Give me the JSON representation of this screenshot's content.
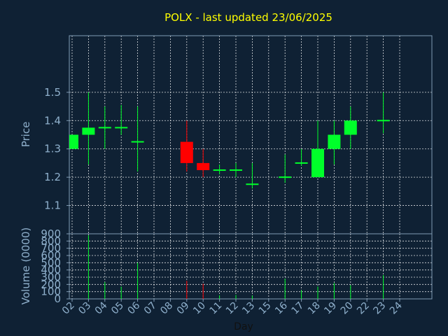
{
  "chart_data": {
    "type": "candlestick",
    "title": "POLX - last updated 23/06/2025",
    "xlabel": "Day",
    "colors": {
      "background": "#0f2134",
      "up": "#00ff2a",
      "down": "#ff0000",
      "title": "#ffff00",
      "text": "#8fb0cc",
      "grid": "#ffffff"
    },
    "x_ticks": [
      "02",
      "03",
      "04",
      "05",
      "06",
      "07",
      "08",
      "09",
      "10",
      "11",
      "12",
      "13",
      "15",
      "16",
      "17",
      "18",
      "19",
      "20",
      "22",
      "23",
      "24"
    ],
    "price_panel": {
      "ylabel": "Price",
      "ylim": [
        1.0,
        1.7
      ],
      "y_ticks": [
        1.1,
        1.2,
        1.3,
        1.4,
        1.5
      ],
      "y_tick_labels": [
        "1.1",
        "1.2",
        "1.3",
        "1.4",
        "1.5"
      ],
      "grid": true
    },
    "volume_panel": {
      "ylabel": "Volume (0000)",
      "ylim": [
        0,
        900
      ],
      "y_ticks": [
        0,
        100,
        200,
        300,
        400,
        500,
        600,
        700,
        800,
        900
      ],
      "y_tick_labels": [
        "0",
        "100",
        "200",
        "300",
        "400",
        "500",
        "600",
        "700",
        "800",
        "900"
      ],
      "grid": true
    },
    "candles": [
      {
        "day": "02",
        "open": 1.3,
        "high": 1.35,
        "low": 1.3,
        "close": 1.35,
        "volume": 0
      },
      {
        "day": "03",
        "open": 1.35,
        "high": 1.5,
        "low": 1.245,
        "close": 1.375,
        "volume": 880
      },
      {
        "day": "04",
        "open": 1.375,
        "high": 1.45,
        "low": 1.3,
        "close": 1.375,
        "volume": 230
      },
      {
        "day": "05",
        "open": 1.375,
        "high": 1.455,
        "low": 1.35,
        "close": 1.375,
        "volume": 170
      },
      {
        "day": "06",
        "open": 1.325,
        "high": 1.45,
        "low": 1.22,
        "close": 1.325,
        "volume": 500
      },
      {
        "day": "09",
        "open": 1.325,
        "high": 1.4,
        "low": 1.22,
        "close": 1.25,
        "volume": 250
      },
      {
        "day": "10",
        "open": 1.25,
        "high": 1.3,
        "low": 1.2,
        "close": 1.225,
        "volume": 210
      },
      {
        "day": "11",
        "open": 1.225,
        "high": 1.245,
        "low": 1.21,
        "close": 1.225,
        "volume": 50
      },
      {
        "day": "12",
        "open": 1.225,
        "high": 1.25,
        "low": 1.2,
        "close": 1.225,
        "volume": 55
      },
      {
        "day": "13",
        "open": 1.175,
        "high": 1.25,
        "low": 1.16,
        "close": 1.175,
        "volume": 45
      },
      {
        "day": "16",
        "open": 1.2,
        "high": 1.28,
        "low": 1.18,
        "close": 1.2,
        "volume": 280
      },
      {
        "day": "17",
        "open": 1.25,
        "high": 1.3,
        "low": 1.24,
        "close": 1.25,
        "volume": 120
      },
      {
        "day": "18",
        "open": 1.2,
        "high": 1.4,
        "low": 1.2,
        "close": 1.3,
        "volume": 170
      },
      {
        "day": "19",
        "open": 1.3,
        "high": 1.4,
        "low": 1.245,
        "close": 1.35,
        "volume": 220
      },
      {
        "day": "20",
        "open": 1.35,
        "high": 1.45,
        "low": 1.3,
        "close": 1.4,
        "volume": 190
      },
      {
        "day": "23",
        "open": 1.4,
        "high": 1.5,
        "low": 1.355,
        "close": 1.4,
        "volume": 330
      }
    ]
  }
}
